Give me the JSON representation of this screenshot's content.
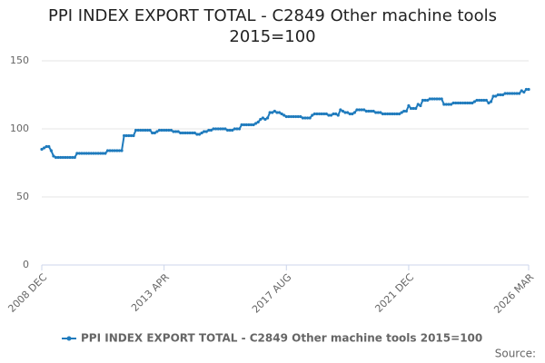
{
  "chart_data": {
    "type": "line",
    "title": "PPI INDEX EXPORT TOTAL - C2849 Other machine tools 2015=100",
    "source": "Source:",
    "categories": [
      "2008 DEC",
      null,
      null,
      null,
      null,
      null,
      null,
      null,
      null,
      null,
      null,
      null,
      null,
      null,
      null,
      null,
      null,
      null,
      null,
      null,
      null,
      null,
      null,
      null,
      null,
      null,
      null,
      null,
      null,
      null,
      null,
      null,
      null,
      null,
      null,
      null,
      null,
      null,
      null,
      null,
      null,
      null,
      null,
      null,
      null,
      null,
      null,
      null,
      null,
      null,
      null,
      null,
      "2013 APR",
      null,
      null,
      null,
      null,
      null,
      null,
      null,
      null,
      null,
      null,
      null,
      null,
      null,
      null,
      null,
      null,
      null,
      null,
      null,
      null,
      null,
      null,
      null,
      null,
      null,
      null,
      null,
      null,
      null,
      null,
      null,
      null,
      null,
      null,
      null,
      null,
      null,
      null,
      null,
      null,
      null,
      null,
      null,
      null,
      null,
      null,
      null,
      null,
      null,
      null,
      null,
      "2017 AUG",
      null,
      null,
      null,
      null,
      null,
      null,
      null,
      null,
      null,
      null,
      null,
      null,
      null,
      null,
      null,
      null,
      null,
      null,
      null,
      null,
      null,
      null,
      null,
      null,
      null,
      null,
      null,
      null,
      null,
      null,
      null,
      null,
      null,
      null,
      null,
      null,
      null,
      null,
      null,
      null,
      null,
      null,
      null,
      null,
      null,
      null,
      null,
      null,
      null,
      null,
      null,
      "2021 DEC",
      null,
      null,
      null,
      null,
      null,
      null,
      null,
      null,
      null,
      null,
      null,
      null,
      null,
      null,
      null,
      null,
      null,
      null,
      null,
      null,
      null,
      null,
      null,
      null,
      null,
      null,
      null,
      null,
      null,
      null,
      null,
      null,
      null,
      null,
      null,
      null,
      null,
      null,
      null,
      null,
      null,
      null,
      null,
      null,
      null,
      null,
      null,
      null,
      null,
      null,
      "2026 MAR"
    ],
    "series": [
      {
        "name": "PPI INDEX EXPORT TOTAL - C2849 Other machine tools 2015=100",
        "color": "#1f7bbd",
        "values": [
          85,
          86,
          87,
          87,
          84,
          80,
          79,
          79,
          79,
          79,
          79,
          79,
          79,
          79,
          79,
          82,
          82,
          82,
          82,
          82,
          82,
          82,
          82,
          82,
          82,
          82,
          82,
          82,
          84,
          84,
          84,
          84,
          84,
          84,
          84,
          95,
          95,
          95,
          95,
          95,
          99,
          99,
          99,
          99,
          99,
          99,
          99,
          97,
          97,
          98,
          99,
          99,
          99,
          99,
          99,
          99,
          98,
          98,
          98,
          97,
          97,
          97,
          97,
          97,
          97,
          97,
          96,
          96,
          97,
          98,
          98,
          99,
          99,
          100,
          100,
          100,
          100,
          100,
          100,
          99,
          99,
          99,
          100,
          100,
          100,
          103,
          103,
          103,
          103,
          103,
          103,
          104,
          105,
          107,
          108,
          107,
          108,
          112,
          112,
          113,
          112,
          112,
          111,
          110,
          109,
          109,
          109,
          109,
          109,
          109,
          109,
          108,
          108,
          108,
          108,
          110,
          111,
          111,
          111,
          111,
          111,
          111,
          110,
          110,
          111,
          111,
          110,
          114,
          113,
          112,
          112,
          111,
          111,
          112,
          114,
          114,
          114,
          114,
          113,
          113,
          113,
          113,
          112,
          112,
          112,
          111,
          111,
          111,
          111,
          111,
          111,
          111,
          111,
          112,
          113,
          113,
          117,
          115,
          115,
          115,
          118,
          117,
          121,
          121,
          121,
          122,
          122,
          122,
          122,
          122,
          122,
          118,
          118,
          118,
          118,
          119,
          119,
          119,
          119,
          119,
          119,
          119,
          119,
          119,
          120,
          121,
          121,
          121,
          121,
          121,
          119,
          120,
          124,
          124,
          125,
          125,
          125,
          126,
          126,
          126,
          126,
          126,
          126,
          126,
          128,
          127,
          129,
          129
        ]
      }
    ],
    "ylim": [
      0,
      150
    ],
    "yticks": [
      0,
      50,
      100,
      150
    ],
    "grid": true
  }
}
